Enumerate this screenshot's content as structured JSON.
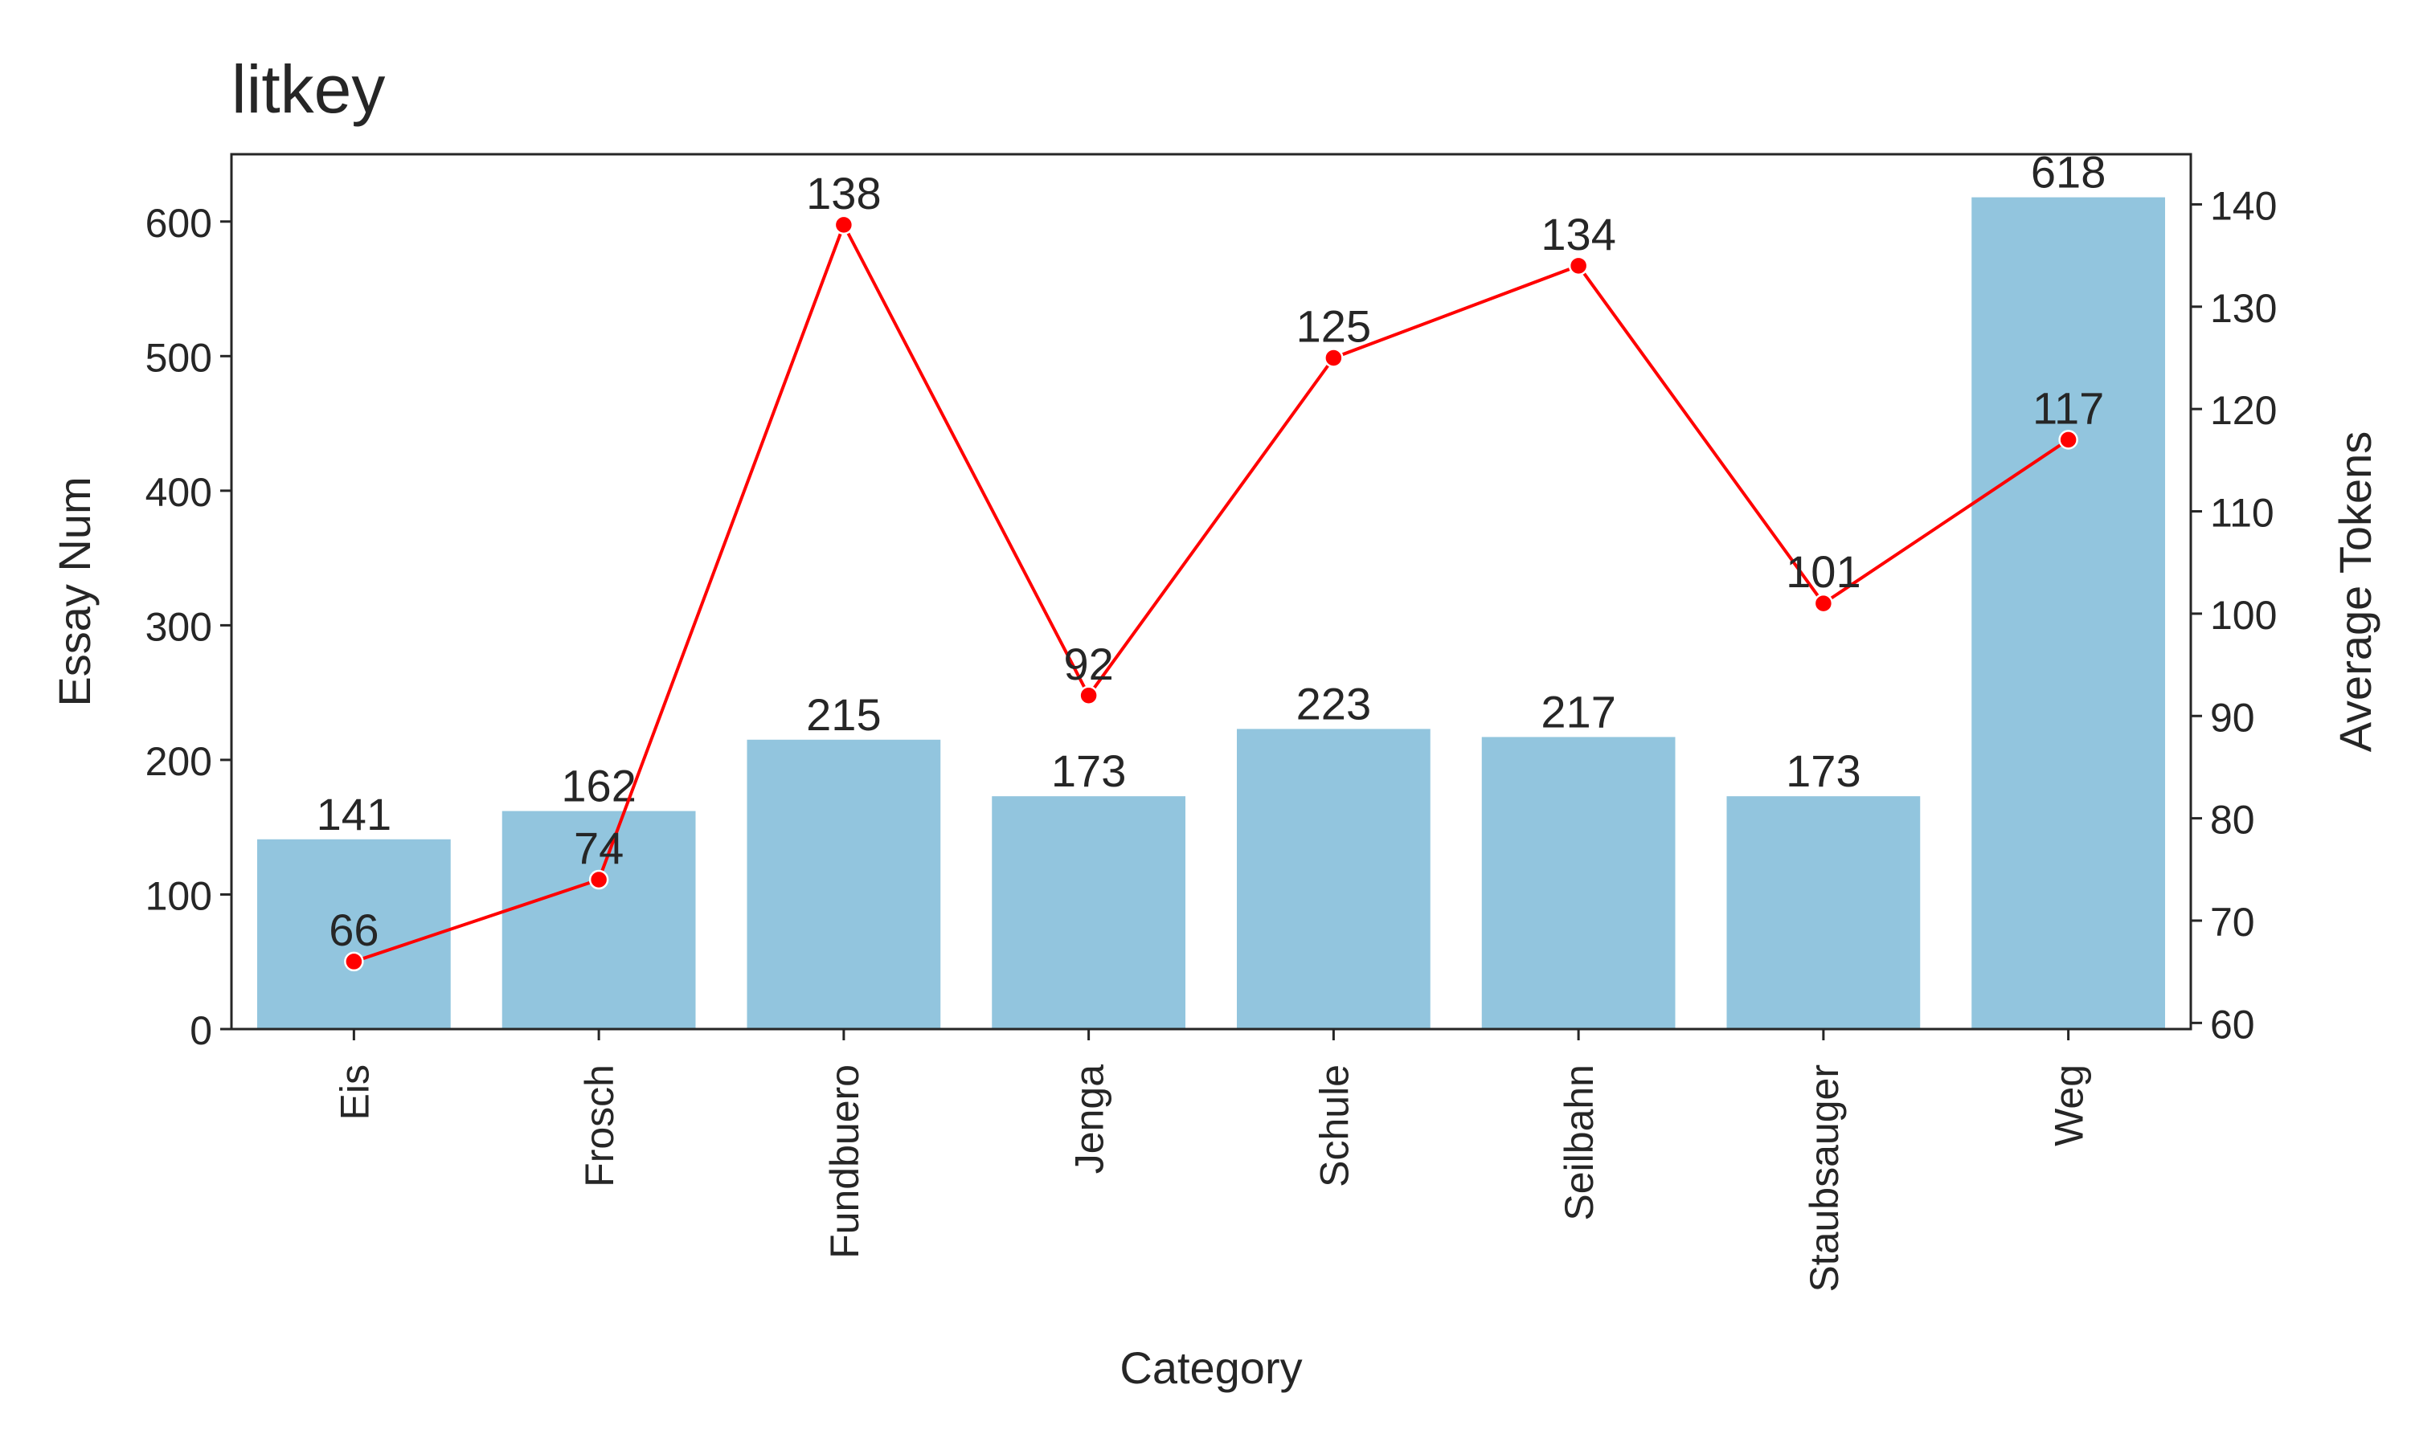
{
  "chart_data": {
    "type": "bar",
    "title": "litkey",
    "xlabel": "Category",
    "ylabel": "Essay Num",
    "y2label": "Average Tokens",
    "categories": [
      "Eis",
      "Frosch",
      "Fundbuero",
      "Jenga",
      "Schule",
      "Seilbahn",
      "Staubsauger",
      "Weg"
    ],
    "series": [
      {
        "name": "",
        "type": "bar",
        "axis": "left",
        "values": [
          141,
          162,
          215,
          173,
          223,
          217,
          173,
          618
        ]
      },
      {
        "name": "",
        "type": "line",
        "axis": "right",
        "values": [
          66,
          74,
          138,
          92,
          125,
          134,
          101,
          117
        ]
      }
    ],
    "ylim": [
      0,
      650
    ],
    "y2lim": [
      59.4,
      144.9
    ],
    "yticks": [
      0,
      100,
      200,
      300,
      400,
      500,
      600
    ],
    "y2ticks": [
      60,
      70,
      80,
      90,
      100,
      110,
      120,
      130,
      140
    ],
    "grid": false,
    "x_tick_rotation": "vertical",
    "colors": {
      "bar": "#92c5de",
      "line": "#ff0000",
      "text": "#262626",
      "axes": "#262626"
    }
  }
}
